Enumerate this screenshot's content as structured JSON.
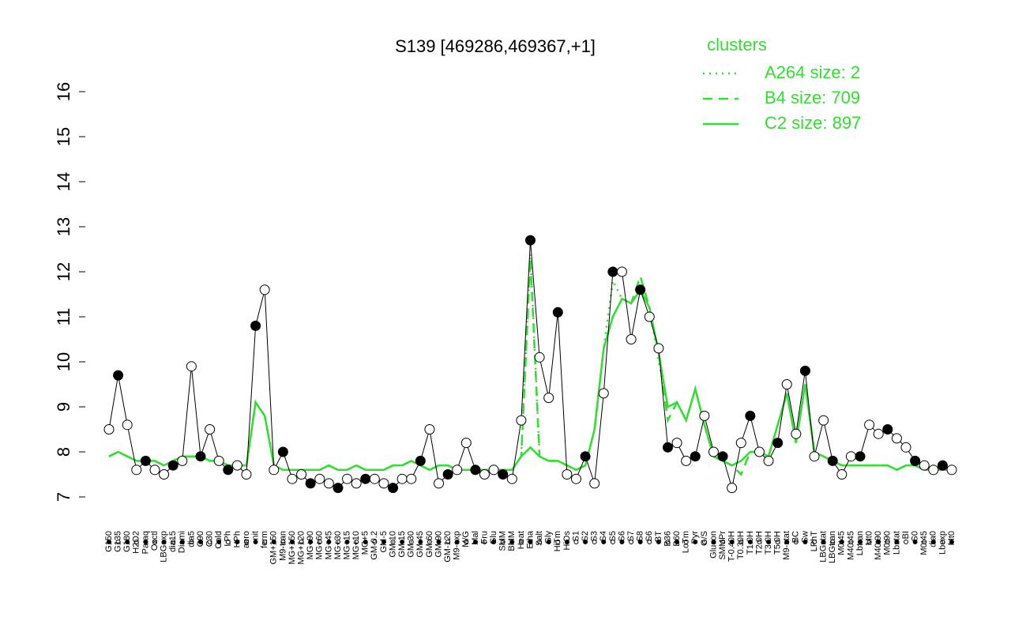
{
  "chart_data": {
    "type": "line",
    "title": "S139 [469286,469367,+1]",
    "legend_title": "clusters",
    "legend_position": "top-right",
    "legend_color": "#33dd33",
    "ylim": [
      7,
      16
    ],
    "yticks": [
      7,
      8,
      9,
      10,
      11,
      12,
      13,
      14,
      15,
      16
    ],
    "categories": [
      "G150",
      "G135",
      "G180",
      "H2O2",
      "Paraq",
      "Oxctl",
      "LBGexp",
      "dia15",
      "Diami",
      "dia5",
      "C90",
      "C30",
      "Cold",
      "LPh",
      "HPh",
      "aero",
      "nit",
      "ferm",
      "GM+150",
      "M9-tran",
      "MG+150",
      "MG+120",
      "MG+90",
      "MG+60",
      "MG+45",
      "MG+30",
      "MG+15",
      "MG+10",
      "MG+5",
      "GM-0.2",
      "GM-5",
      "GM-10",
      "GM-15",
      "GM-30",
      "GM-45",
      "GM-60",
      "GM-90",
      "GM-120",
      "M9-exp",
      "M/G",
      "Mal",
      "Fru",
      "Glu",
      "SMM",
      "BMM",
      "Heat",
      "Etha",
      "Salt",
      "Gly",
      "HiTm",
      "HiOs",
      "S1",
      "S2",
      "S3",
      "S4",
      "S5",
      "S6",
      "S7",
      "S8",
      "S6",
      "BT",
      "B36",
      "B60",
      "LoTm",
      "Pyr",
      "G/S",
      "Glucon",
      "SMMPr",
      "T-0.40H",
      "T0.30H",
      "T1.0H",
      "T2.0H",
      "T3.0H",
      "T5.0H",
      "M9-stat",
      "BC",
      "Sw",
      "LPhT",
      "LBGstat",
      "LBGtran",
      "M0t45",
      "M40t45",
      "Lbtran",
      "Mt0",
      "M40t90",
      "M0t90",
      "Lbstat",
      "BI",
      "S0",
      "M0t45",
      "dia0",
      "Lbexp",
      "Mt0"
    ],
    "values": [
      8.5,
      9.7,
      8.6,
      7.6,
      7.8,
      7.6,
      7.5,
      7.7,
      7.8,
      9.9,
      7.9,
      8.5,
      7.8,
      7.6,
      7.7,
      7.5,
      10.8,
      11.6,
      7.6,
      8.0,
      7.4,
      7.5,
      7.3,
      7.4,
      7.3,
      7.2,
      7.4,
      7.3,
      7.4,
      7.4,
      7.3,
      7.2,
      7.4,
      7.4,
      7.8,
      8.5,
      7.3,
      7.5,
      7.6,
      8.2,
      7.6,
      7.5,
      7.6,
      7.5,
      7.4,
      8.7,
      12.7,
      10.1,
      9.2,
      11.1,
      7.5,
      7.4,
      7.9,
      7.3,
      9.3,
      12.0,
      12.0,
      10.5,
      11.6,
      11.0,
      10.3,
      8.1,
      8.2,
      7.8,
      7.9,
      8.8,
      8.0,
      7.9,
      7.2,
      8.2,
      8.8,
      8.0,
      7.8,
      8.2,
      9.5,
      8.4,
      9.8,
      7.9,
      8.7,
      7.8,
      7.5,
      7.9,
      7.9,
      8.6,
      8.4,
      8.5,
      8.3,
      8.1,
      7.8,
      7.7,
      7.6,
      7.7,
      7.6
    ],
    "color": "#000000",
    "series": [
      {
        "name": "A264 size: 2",
        "color": "#33dd33",
        "dash": "dotted",
        "values": [
          7.9,
          8.0,
          7.9,
          7.8,
          7.8,
          7.8,
          7.7,
          7.8,
          7.9,
          7.9,
          7.9,
          7.8,
          7.8,
          7.7,
          7.7,
          7.7,
          9.1,
          8.8,
          7.7,
          7.6,
          7.6,
          7.6,
          7.6,
          7.6,
          7.7,
          7.6,
          7.6,
          7.7,
          7.6,
          7.6,
          7.6,
          7.7,
          7.7,
          7.8,
          7.7,
          7.6,
          7.7,
          7.7,
          7.6,
          7.6,
          7.6,
          7.6,
          7.6,
          7.6,
          7.6,
          7.9,
          12.4,
          7.9,
          7.8,
          7.8,
          7.7,
          7.6,
          7.7,
          8.5,
          10.3,
          11.8,
          11.4,
          11.3,
          11.6,
          11.2,
          10.0,
          9.0,
          9.1,
          8.7,
          9.4,
          8.6,
          7.9,
          7.8,
          7.7,
          7.8,
          8.0,
          8.0,
          7.9,
          8.6,
          9.3,
          8.2,
          9.5,
          8.0,
          7.9,
          7.8,
          7.7,
          7.7,
          7.7,
          7.7,
          7.7,
          7.7,
          7.6,
          7.7,
          7.7,
          7.6,
          7.6,
          7.6,
          7.6
        ]
      },
      {
        "name": "B4 size: 709",
        "color": "#33dd33",
        "dash": "dashed",
        "values": [
          7.9,
          8.0,
          7.9,
          7.8,
          7.8,
          7.8,
          7.7,
          7.8,
          7.9,
          7.9,
          7.9,
          7.8,
          7.8,
          7.7,
          7.7,
          7.7,
          9.1,
          8.8,
          7.7,
          7.6,
          7.6,
          7.6,
          7.6,
          7.6,
          7.7,
          7.6,
          7.6,
          7.7,
          7.6,
          7.6,
          7.6,
          7.7,
          7.7,
          7.8,
          7.7,
          7.6,
          7.7,
          7.7,
          7.6,
          7.6,
          7.6,
          7.6,
          7.6,
          7.6,
          7.6,
          7.9,
          12.3,
          7.9,
          7.8,
          7.8,
          7.7,
          7.6,
          7.7,
          8.5,
          10.3,
          11.0,
          11.4,
          11.3,
          11.9,
          11.2,
          10.2,
          8.7,
          9.1,
          8.7,
          9.4,
          8.6,
          7.9,
          7.8,
          7.7,
          7.5,
          8.0,
          8.0,
          7.9,
          8.6,
          9.3,
          8.2,
          9.5,
          8.0,
          7.9,
          7.8,
          7.7,
          7.7,
          7.7,
          7.7,
          7.7,
          7.7,
          7.6,
          7.7,
          7.7,
          7.6,
          7.6,
          7.6,
          7.6
        ]
      },
      {
        "name": "C2 size: 897",
        "color": "#33dd33",
        "dash": "solid",
        "values": [
          7.9,
          8.0,
          7.9,
          7.8,
          7.8,
          7.8,
          7.7,
          7.8,
          7.9,
          7.9,
          7.9,
          7.8,
          7.8,
          7.7,
          7.7,
          7.7,
          9.1,
          8.8,
          7.7,
          7.6,
          7.6,
          7.6,
          7.6,
          7.6,
          7.7,
          7.6,
          7.6,
          7.7,
          7.6,
          7.6,
          7.6,
          7.7,
          7.7,
          7.8,
          7.7,
          7.6,
          7.7,
          7.7,
          7.6,
          7.6,
          7.6,
          7.6,
          7.6,
          7.6,
          7.6,
          7.9,
          8.1,
          7.9,
          7.8,
          7.8,
          7.7,
          7.6,
          7.7,
          8.5,
          10.3,
          11.0,
          11.4,
          11.3,
          11.6,
          11.2,
          10.2,
          9.0,
          9.1,
          8.7,
          9.4,
          8.6,
          7.9,
          7.8,
          7.7,
          7.8,
          8.0,
          8.0,
          7.9,
          8.6,
          9.3,
          8.2,
          9.5,
          8.0,
          7.9,
          7.8,
          7.7,
          7.7,
          7.7,
          7.7,
          7.7,
          7.7,
          7.6,
          7.7,
          7.7,
          7.6,
          7.6,
          7.6,
          7.6
        ]
      }
    ]
  }
}
